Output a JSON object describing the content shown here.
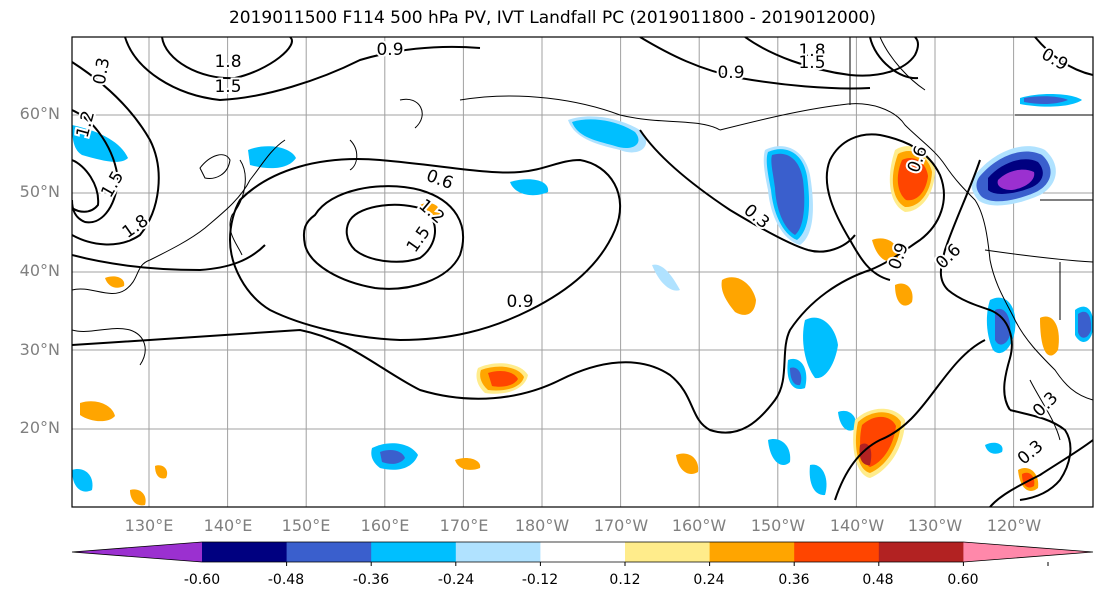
{
  "title": "2019011500 F114 500 hPa PV, IVT Landfall PC (2019011800 - 2019012000)",
  "lat_labels": [
    "60°N",
    "50°N",
    "40°N",
    "30°N",
    "20°N"
  ],
  "lon_labels": [
    "130°E",
    "140°E",
    "150°E",
    "160°E",
    "170°E",
    "180°W",
    "170°W",
    "160°W",
    "150°W",
    "140°W",
    "130°W",
    "120°W"
  ],
  "contour_labels": [
    "1.8",
    "1.5",
    "0.9",
    "0.6",
    "1.2",
    "1.5",
    "1.8",
    "1.2",
    "0.9",
    "1.5",
    "0.9",
    "1.8",
    "1.5",
    "0.9",
    "0.3",
    "0.9",
    "0.6",
    "0.3",
    "0.3",
    "0.3",
    "0.6"
  ],
  "colorbar": {
    "ticks": [
      "-0.60",
      "-0.48",
      "-0.36",
      "-0.24",
      "-0.12",
      "0.12",
      "0.24",
      "0.36",
      "0.48",
      "0.60"
    ],
    "colors": [
      "#9b30d0",
      "#000080",
      "#3a5fcd",
      "#00bfff",
      "#b0e2ff",
      "#ffffff",
      "#ffec8b",
      "#ffa500",
      "#ff4500",
      "#b22222",
      "#ff88aa"
    ]
  }
}
